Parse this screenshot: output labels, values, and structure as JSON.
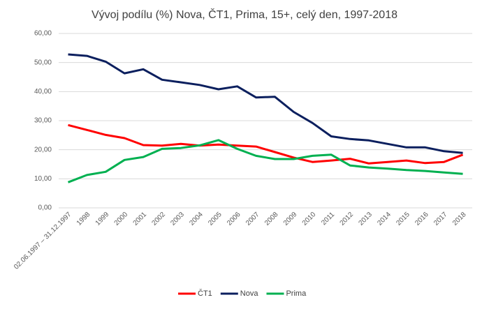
{
  "chart_data": {
    "type": "line",
    "title": "Vývoj podílu (%) Nova, ČT1, Prima, 15+, celý den, 1997-2018",
    "categories": [
      "02.06.1997 – 31.12.1997",
      "1998",
      "1999",
      "2000",
      "2001",
      "2002",
      "2003",
      "2004",
      "2005",
      "2006",
      "2007",
      "2008",
      "2009",
      "2010",
      "2011",
      "2012",
      "2013",
      "2014",
      "2015",
      "2016",
      "2017",
      "2018"
    ],
    "series": [
      {
        "name": "ČT1",
        "color": "#ff0000",
        "values": [
          28.5,
          26.8,
          25.1,
          24.0,
          21.6,
          21.4,
          22.0,
          21.4,
          21.8,
          21.4,
          21.1,
          19.2,
          17.3,
          15.8,
          16.3,
          16.9,
          15.3,
          15.8,
          16.3,
          15.4,
          15.8,
          18.3
        ]
      },
      {
        "name": "Nova",
        "color": "#0b1f5e",
        "values": [
          52.8,
          52.3,
          50.3,
          46.3,
          47.7,
          44.1,
          43.2,
          42.3,
          40.8,
          41.8,
          38.0,
          38.2,
          33.0,
          29.2,
          24.6,
          23.7,
          23.2,
          22.0,
          20.8,
          20.8,
          19.5,
          18.9
        ]
      },
      {
        "name": "Prima",
        "color": "#00b050",
        "values": [
          8.8,
          11.3,
          12.4,
          16.5,
          17.5,
          20.3,
          20.6,
          21.5,
          23.3,
          20.3,
          17.9,
          16.8,
          16.8,
          17.9,
          18.3,
          14.6,
          13.9,
          13.5,
          13.0,
          12.7,
          12.2,
          11.7
        ]
      }
    ],
    "ylim": [
      0,
      60
    ],
    "yticks": [
      {
        "value": 0,
        "label": "0,00"
      },
      {
        "value": 10,
        "label": "10,00"
      },
      {
        "value": 20,
        "label": "20,00"
      },
      {
        "value": 30,
        "label": "30,00"
      },
      {
        "value": 40,
        "label": "40,00"
      },
      {
        "value": 50,
        "label": "50,00"
      },
      {
        "value": 60,
        "label": "60,00"
      }
    ],
    "grid": true,
    "legend": "bottom"
  }
}
